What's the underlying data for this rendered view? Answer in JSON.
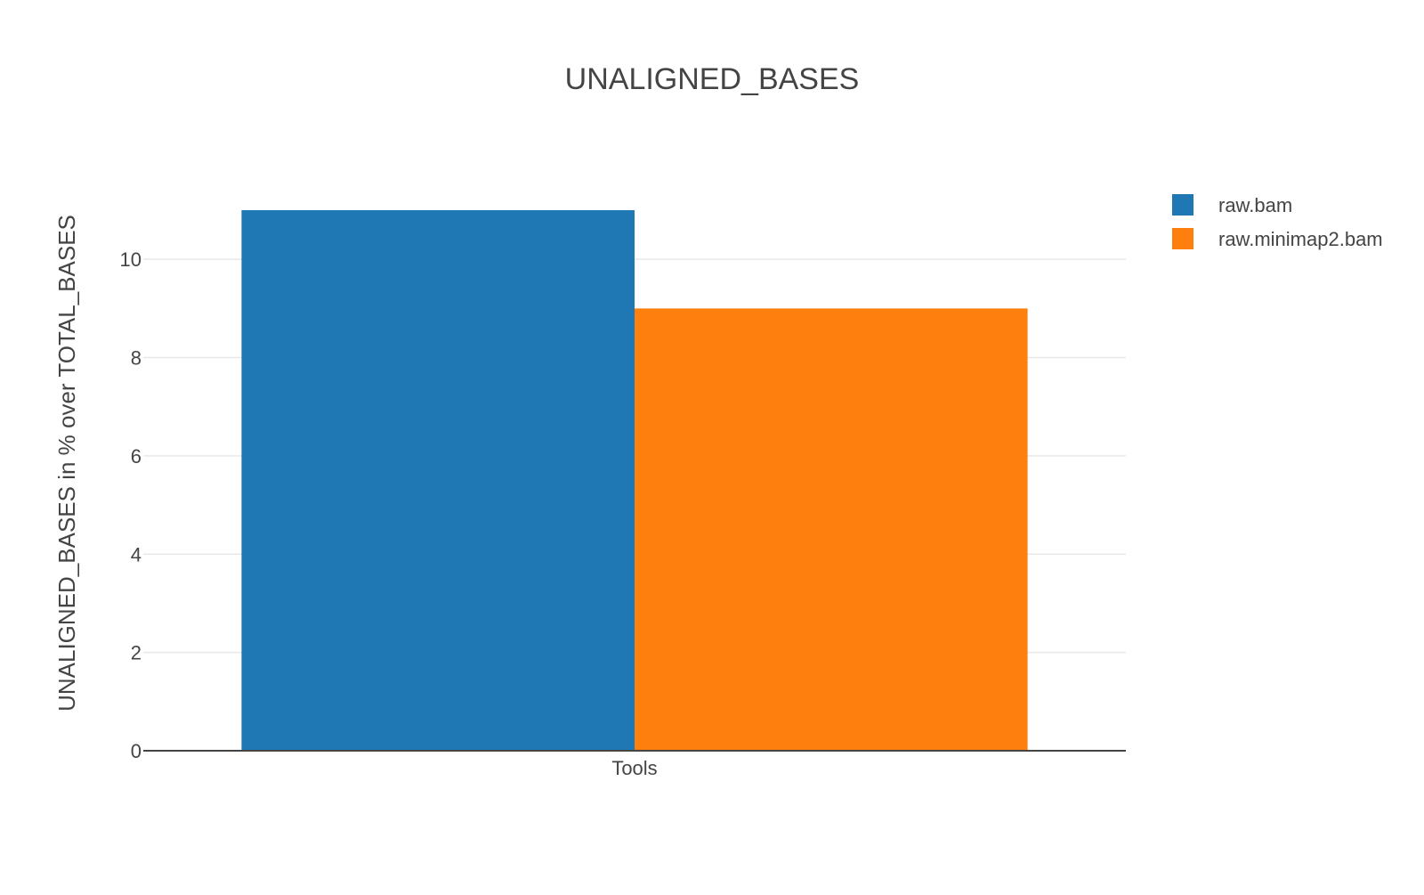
{
  "chart_data": {
    "type": "bar",
    "title": "UNALIGNED_BASES",
    "xlabel": "",
    "ylabel": "UNALIGNED_BASES in % over TOTAL_BASES",
    "categories": [
      "Tools"
    ],
    "series": [
      {
        "name": "raw.bam",
        "values": [
          11
        ],
        "color": "#1f77b4"
      },
      {
        "name": "raw.minimap2.bam",
        "values": [
          9
        ],
        "color": "#ff7f0e"
      }
    ],
    "ylim": [
      0,
      11.58
    ],
    "yticks": [
      0,
      2,
      4,
      6,
      8,
      10
    ],
    "grid": true,
    "legend_position": "top-right"
  }
}
